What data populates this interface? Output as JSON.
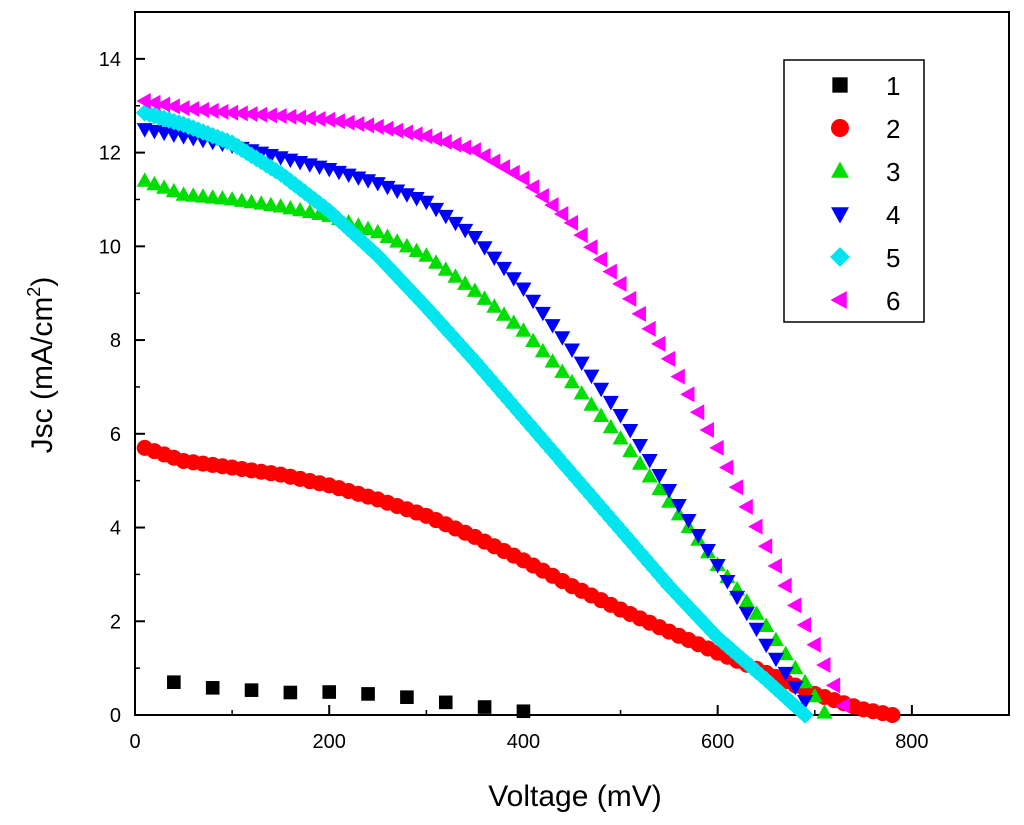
{
  "chart_data": {
    "type": "scatter",
    "xlabel": "Voltage (mV)",
    "ylabel_main": "Jsc (mA/cm",
    "ylabel_sup": "2",
    "ylabel_close": ")",
    "xlim": [
      0,
      900
    ],
    "ylim": [
      0,
      15
    ],
    "xticks": [
      0,
      200,
      400,
      600,
      800
    ],
    "yticks": [
      0,
      2,
      4,
      6,
      8,
      10,
      12,
      14
    ],
    "grid": false,
    "legend_position": "top-right",
    "series": [
      {
        "name": "1",
        "color": "#000000",
        "marker": "square",
        "points": [
          [
            40,
            0.7
          ],
          [
            80,
            0.58
          ],
          [
            120,
            0.53
          ],
          [
            160,
            0.48
          ],
          [
            200,
            0.49
          ],
          [
            240,
            0.45
          ],
          [
            280,
            0.38
          ],
          [
            320,
            0.27
          ],
          [
            360,
            0.17
          ],
          [
            400,
            0.08
          ]
        ]
      },
      {
        "name": "2",
        "color": "#ff0000",
        "marker": "circle",
        "anchors": [
          [
            10,
            5.7
          ],
          [
            50,
            5.42
          ],
          [
            100,
            5.28
          ],
          [
            150,
            5.13
          ],
          [
            200,
            4.9
          ],
          [
            250,
            4.6
          ],
          [
            300,
            4.25
          ],
          [
            350,
            3.8
          ],
          [
            400,
            3.3
          ],
          [
            450,
            2.75
          ],
          [
            500,
            2.25
          ],
          [
            550,
            1.78
          ],
          [
            600,
            1.33
          ],
          [
            650,
            0.9
          ],
          [
            700,
            0.45
          ],
          [
            750,
            0.12
          ],
          [
            780,
            0.0
          ]
        ],
        "step": 10
      },
      {
        "name": "3",
        "color": "#00dd00",
        "marker": "triangle-up",
        "anchors": [
          [
            10,
            11.4
          ],
          [
            50,
            11.1
          ],
          [
            100,
            11.0
          ],
          [
            150,
            10.85
          ],
          [
            200,
            10.65
          ],
          [
            250,
            10.3
          ],
          [
            300,
            9.8
          ],
          [
            350,
            9.05
          ],
          [
            400,
            8.2
          ],
          [
            450,
            7.1
          ],
          [
            500,
            5.9
          ],
          [
            550,
            4.55
          ],
          [
            600,
            3.2
          ],
          [
            650,
            1.9
          ],
          [
            700,
            0.4
          ],
          [
            710,
            0.05
          ]
        ],
        "step": 10
      },
      {
        "name": "4",
        "color": "#0000ff",
        "marker": "triangle-down",
        "anchors": [
          [
            10,
            12.5
          ],
          [
            50,
            12.35
          ],
          [
            100,
            12.15
          ],
          [
            150,
            11.9
          ],
          [
            200,
            11.65
          ],
          [
            250,
            11.35
          ],
          [
            300,
            10.95
          ],
          [
            350,
            10.2
          ],
          [
            400,
            9.1
          ],
          [
            450,
            7.8
          ],
          [
            500,
            6.4
          ],
          [
            550,
            4.8
          ],
          [
            600,
            3.2
          ],
          [
            650,
            1.5
          ],
          [
            690,
            0.3
          ]
        ],
        "step": 10
      },
      {
        "name": "5",
        "color": "#00e5ee",
        "marker": "diamond",
        "anchors": [
          [
            10,
            12.85
          ],
          [
            50,
            12.6
          ],
          [
            100,
            12.2
          ],
          [
            150,
            11.55
          ],
          [
            200,
            10.75
          ],
          [
            250,
            9.8
          ],
          [
            300,
            8.7
          ],
          [
            350,
            7.55
          ],
          [
            400,
            6.35
          ],
          [
            450,
            5.15
          ],
          [
            500,
            3.95
          ],
          [
            550,
            2.75
          ],
          [
            600,
            1.65
          ],
          [
            650,
            0.75
          ],
          [
            690,
            0.0
          ]
        ],
        "step": 5
      },
      {
        "name": "6",
        "color": "#ff00ff",
        "marker": "triangle-left",
        "anchors": [
          [
            10,
            13.1
          ],
          [
            50,
            12.95
          ],
          [
            100,
            12.85
          ],
          [
            150,
            12.78
          ],
          [
            200,
            12.7
          ],
          [
            250,
            12.55
          ],
          [
            300,
            12.35
          ],
          [
            350,
            12.05
          ],
          [
            400,
            11.45
          ],
          [
            450,
            10.5
          ],
          [
            500,
            9.2
          ],
          [
            550,
            7.6
          ],
          [
            600,
            5.7
          ],
          [
            650,
            3.6
          ],
          [
            700,
            1.5
          ],
          [
            730,
            0.2
          ]
        ],
        "step": 10
      }
    ]
  }
}
